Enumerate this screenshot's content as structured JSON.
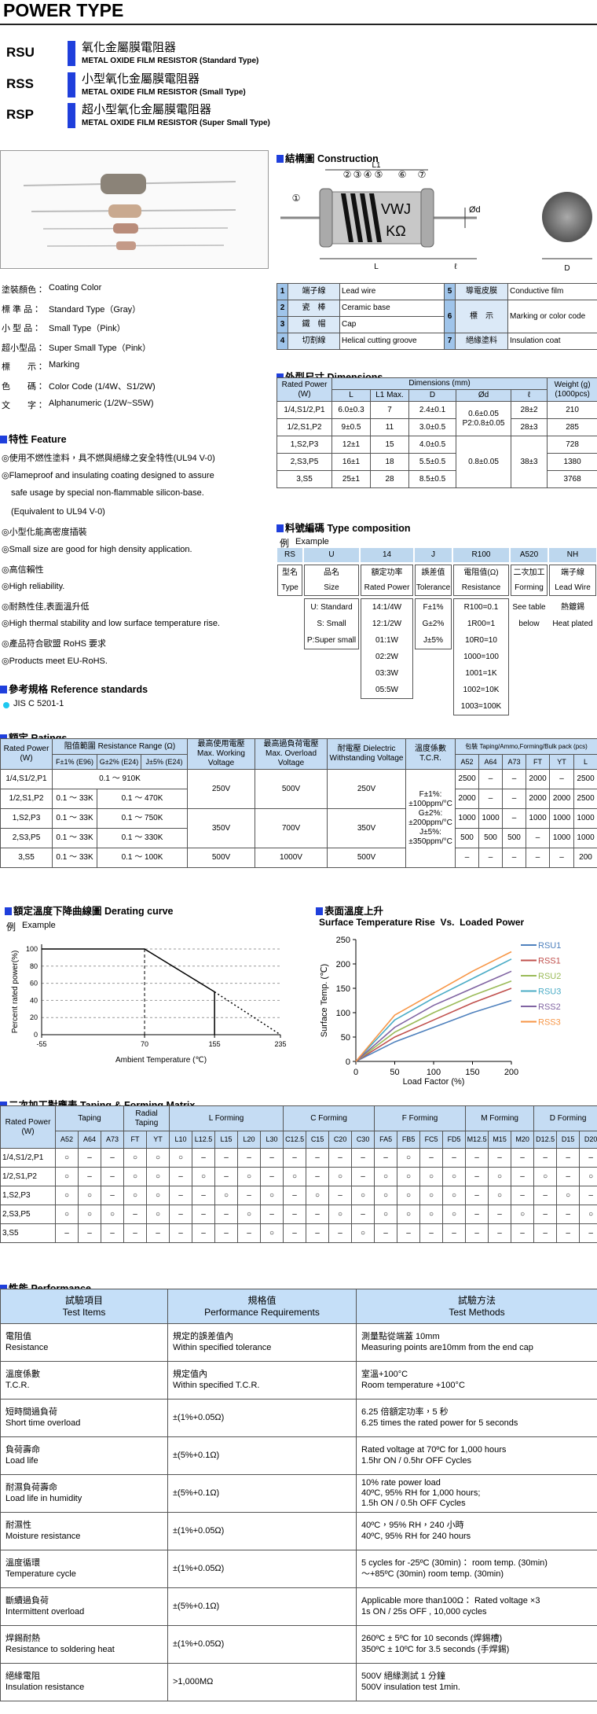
{
  "header": {
    "title": "POWER TYPE"
  },
  "series_types": [
    {
      "code": "RSU",
      "name_zh": "氧化金屬膜電阻器",
      "name_en": "METAL OXIDE FILM RESISTOR (Standard Type)"
    },
    {
      "code": "RSS",
      "name_zh": "小型氧化金屬膜電阻器",
      "name_en": "METAL OXIDE FILM RESISTOR (Small Type)"
    },
    {
      "code": "RSP",
      "name_zh": "超小型氧化金屬膜電阻器",
      "name_en": "METAL OXIDE FILM RESISTOR (Super Small Type)"
    }
  ],
  "coating": [
    {
      "zh": "塗裝顏色：",
      "en": "Coating Color"
    },
    {
      "zh": "標 準 品：",
      "en": "Standard Type（Gray）"
    },
    {
      "zh": "小 型 品：",
      "en": "Small Type（Pink）"
    },
    {
      "zh": "超小型品：",
      "en": "Super Small Type（Pink）"
    },
    {
      "zh": "標　　示：",
      "en": "Marking"
    },
    {
      "zh": "色　　碼：",
      "en": "Color Code (1/4W、S1/2W)"
    },
    {
      "zh": "文　　字：",
      "en": "Alphanumeric (1/2W~S5W)"
    }
  ],
  "feature": {
    "title": "特性 Feature",
    "items": [
      "◎使用不燃性塗料，具不燃與絕緣之安全特性(UL94 V-0)",
      "◎Flameproof and insulating coating designed to assure",
      "safe usage by special non-flammable silicon-base.",
      "(Equivalent to UL94 V-0)",
      "◎小型化能高密度插裝",
      "◎Small size are good for high density application.",
      "◎高信賴性",
      "◎High reliability.",
      "◎耐熱性佳,表面溫升低",
      "◎High thermal stability and low surface temperature rise.",
      "◎產品符合歐盟 RoHS 要求",
      "◎Products meet  EU-RoHS."
    ]
  },
  "reference": {
    "title": "參考規格 Reference standards",
    "items": [
      "JIS C 5201-1"
    ]
  },
  "construction": {
    "title": "結構圖 Construction",
    "drawing": {
      "markers": [
        "①",
        "②",
        "③",
        "④",
        "⑤",
        "⑥",
        "⑦"
      ],
      "L1": "L1",
      "d": "Ød",
      "L": "L",
      "l": "ℓ",
      "D": "D",
      "marking": [
        "VWJ",
        "KΩ"
      ]
    },
    "parts": [
      {
        "no": "1",
        "zh": "端子線",
        "en": "Lead wire"
      },
      {
        "no": "2",
        "zh": "瓷　棒",
        "en": "Ceramic base"
      },
      {
        "no": "3",
        "zh": "鐵　帽",
        "en": "Cap"
      },
      {
        "no": "4",
        "zh": "切割線",
        "en": "Helical cutting  groove"
      },
      {
        "no": "5",
        "zh": "導電皮膜",
        "en": "Conductive film"
      },
      {
        "no": "6",
        "zh": "標　示",
        "en": "Marking or color code"
      },
      {
        "no": "7",
        "zh": "絕緣塗料",
        "en": "Insulation coat"
      }
    ]
  },
  "dimensions": {
    "title": "外型尺寸 Dimensions",
    "header": {
      "rated": "Rated Power (W)",
      "dims": "Dimensions (mm)",
      "L": "L",
      "L1": "L1 Max.",
      "D": "D",
      "d": "Ød",
      "l": "ℓ",
      "weight": "Weight (g) (1000pcs)"
    },
    "rows": [
      [
        "1/4,S1/2,P1",
        "6.0±0.3",
        "7",
        "2.4±0.1",
        "210"
      ],
      [
        "1/2,S1,P2",
        "9±0.5",
        "11",
        "3.0±0.5",
        "285"
      ],
      [
        "1,S2,P3",
        "12±1",
        "15",
        "4.0±0.5",
        "728"
      ],
      [
        "2,S3,P5",
        "16±1",
        "18",
        "5.5±0.5",
        "1380"
      ],
      [
        "3,S5",
        "25±1",
        "28",
        "8.5±0.5",
        "3768"
      ]
    ],
    "d_values": [
      [
        "0.6±0.05",
        "P2:0.8±0.05"
      ],
      [
        "0.8±0.05"
      ]
    ],
    "l_values": [
      "28±2",
      "28±3",
      "38±3"
    ]
  },
  "type_composition": {
    "title": "料號編碼 Type composition",
    "example_label": "例",
    "example": "Example",
    "codes": [
      "RS",
      "U",
      "14",
      "J",
      "R100",
      "A520",
      "NH"
    ],
    "headers": [
      [
        "型名",
        "Type"
      ],
      [
        "品名",
        "Size"
      ],
      [
        "額定功率",
        "Rated Power"
      ],
      [
        "誤差值",
        "Tolerance"
      ],
      [
        "電阻值(Ω)",
        "Resistance"
      ],
      [
        "二次加工",
        "Forming"
      ],
      [
        "端子線",
        "Lead Wire"
      ]
    ],
    "size": [
      "U: Standard",
      "S: Small",
      "P:Super small"
    ],
    "power": [
      "14:1/4W",
      "12:1/2W",
      "01:1W",
      "02:2W",
      "03:3W",
      "05:5W"
    ],
    "tolerance": [
      "F±1%",
      "G±2%",
      "J±5%"
    ],
    "resistance": [
      "R100=0.1",
      "1R00=1",
      "10R0=10",
      "1000=100",
      "1001=1K",
      "1002=10K",
      "1003=100K"
    ],
    "forming": [
      "See table",
      "below"
    ],
    "lead": [
      "熱鍍錫",
      "Heat plated"
    ]
  },
  "ratings": {
    "title": "額定 Ratings",
    "headers": {
      "rated": "Rated Power (W)",
      "range": "阻值範圍 Resistance Range (Ω)",
      "f1": "F±1% (E96)",
      "g2": "G±2% (E24)",
      "j5": "J±5% (E24)",
      "working": "最高使用電壓 Max. Working Voltage",
      "overload": "最高過負荷電壓 Max. Overload Voltage",
      "dielectric": "耐電壓 Dielectric Withstanding Voltage",
      "tcr": "溫度係數 T.C.R.",
      "pack": "包裝 Taping/Ammo,Forming/Bulk pack (pcs)",
      "pack_cols": [
        "A52",
        "A64",
        "A73",
        "FT",
        "YT",
        "L"
      ]
    },
    "power": [
      "1/4,S1/2,P1",
      "1/2,S1,P2",
      "1,S2,P3",
      "2,S3,P5",
      "3,S5"
    ],
    "range": [
      [
        "0.1 ～ 910K"
      ],
      [
        "0.1 ～ 33K",
        "0.1 ～ 470K"
      ],
      [
        "0.1 ～ 33K",
        "0.1 ～ 750K"
      ],
      [
        "0.1 ～ 33K",
        "0.1 ～ 330K"
      ],
      [
        "0.1 ～ 33K",
        "0.1 ～ 100K"
      ]
    ],
    "working": [
      "250V",
      "350V",
      "500V"
    ],
    "overload": [
      "500V",
      "700V",
      "1000V"
    ],
    "dielectric": [
      "250V",
      "350V",
      "500V"
    ],
    "tcr": [
      "F±1%:",
      "±100ppm/°C",
      "G±2%:",
      "±200ppm/°C",
      "J±5%:",
      "±350ppm/°C"
    ],
    "packing": [
      [
        2500,
        "–",
        "–",
        2000,
        "–",
        2500
      ],
      [
        2000,
        "–",
        "–",
        2000,
        2000,
        2500
      ],
      [
        1000,
        1000,
        "–",
        1000,
        1000,
        1000
      ],
      [
        500,
        500,
        500,
        "–",
        1000,
        1000
      ],
      [
        "–",
        "–",
        "–",
        "–",
        "–",
        200
      ]
    ]
  },
  "derating": {
    "title": "額定溫度下降曲線圖 Derating curve",
    "example_label": "例",
    "example": "Example",
    "ylabel": "Percent rated power(%)",
    "xlabel": "Ambient Temperature (℃)",
    "xlim": [
      -55,
      235
    ],
    "ylim": [
      0,
      100
    ],
    "xticks": [
      -55,
      70,
      155,
      235
    ],
    "yticks": [
      0,
      20,
      40,
      60,
      80,
      100
    ],
    "solid": {
      "x": [
        -55,
        70,
        155,
        155
      ],
      "y": [
        100,
        100,
        50,
        0
      ]
    },
    "dotted": {
      "x": [
        155,
        235
      ],
      "y": [
        50,
        0
      ]
    }
  },
  "surface": {
    "title": "表面溫度上升",
    "subtitle": "Surface Temperature Rise  Vs.  Loaded Power",
    "ylabel": "Surface Temp. (℃)",
    "xlabel": "Load Factor (%)",
    "x": [
      0,
      50,
      100,
      150,
      200
    ],
    "xlim": [
      0,
      200
    ],
    "ylim": [
      0,
      250
    ],
    "xticks": [
      0,
      50,
      100,
      150,
      200
    ],
    "yticks": [
      0,
      50,
      100,
      150,
      200,
      250
    ],
    "series": [
      {
        "name": "RSU1",
        "color": "#4f81bd",
        "values": [
          0,
          40,
          70,
          100,
          125
        ]
      },
      {
        "name": "RSS1",
        "color": "#c0504d",
        "values": [
          0,
          50,
          85,
          120,
          150
        ]
      },
      {
        "name": "RSU2",
        "color": "#9bbb59",
        "values": [
          0,
          60,
          100,
          135,
          165
        ]
      },
      {
        "name": "RSU3",
        "color": "#4bacc6",
        "values": [
          0,
          85,
          130,
          170,
          210
        ]
      },
      {
        "name": "RSS2",
        "color": "#8064a2",
        "values": [
          0,
          70,
          115,
          150,
          185
        ]
      },
      {
        "name": "RSS3",
        "color": "#f79646",
        "values": [
          0,
          95,
          140,
          185,
          225
        ]
      }
    ]
  },
  "taping": {
    "title": "二次加工對應表 Taping & Forming Matrix",
    "rated": "Rated Power (W)",
    "groups": [
      {
        "name": "Taping",
        "cols": [
          "A52",
          "A64",
          "A73"
        ]
      },
      {
        "name": "Radial Taping",
        "cols": [
          "FT",
          "YT"
        ]
      },
      {
        "name": "L  Forming",
        "cols": [
          "L10",
          "L12.5",
          "L15",
          "L20",
          "L30"
        ]
      },
      {
        "name": "C  Forming",
        "cols": [
          "C12.5",
          "C15",
          "C20",
          "C30"
        ]
      },
      {
        "name": "F  Forming",
        "cols": [
          "FA5",
          "FB5",
          "FC5",
          "FD5"
        ]
      },
      {
        "name": "M  Forming",
        "cols": [
          "M12.5",
          "M15",
          "M20"
        ]
      },
      {
        "name": "D  Forming",
        "cols": [
          "D12.5",
          "D15",
          "D20"
        ]
      }
    ],
    "rows": [
      {
        "power": "1/4,S1/2,P1",
        "marks": [
          "○",
          "–",
          "–",
          "○",
          "○",
          "○",
          "–",
          "–",
          "–",
          "–",
          "–",
          "–",
          "–",
          "–",
          "–",
          "○",
          "–",
          "–",
          "–",
          "–",
          "–",
          "–",
          "–",
          "–"
        ]
      },
      {
        "power": "1/2,S1,P2",
        "marks": [
          "○",
          "–",
          "–",
          "○",
          "○",
          "–",
          "○",
          "–",
          "○",
          "–",
          "○",
          "–",
          "○",
          "–",
          "○",
          "○",
          "○",
          "○",
          "–",
          "○",
          "–",
          "○",
          "–",
          "○"
        ]
      },
      {
        "power": "1,S2,P3",
        "marks": [
          "○",
          "○",
          "–",
          "○",
          "○",
          "–",
          "–",
          "○",
          "–",
          "○",
          "–",
          "○",
          "–",
          "○",
          "○",
          "○",
          "○",
          "○",
          "–",
          "○",
          "–",
          "–",
          "○",
          "–"
        ]
      },
      {
        "power": "2,S3,P5",
        "marks": [
          "○",
          "○",
          "○",
          "–",
          "○",
          "–",
          "–",
          "–",
          "○",
          "–",
          "–",
          "–",
          "○",
          "–",
          "○",
          "○",
          "○",
          "○",
          "–",
          "–",
          "○",
          "–",
          "–",
          "○"
        ]
      },
      {
        "power": "3,S5",
        "marks": [
          "–",
          "–",
          "–",
          "–",
          "–",
          "–",
          "–",
          "–",
          "–",
          "○",
          "–",
          "–",
          "–",
          "○",
          "–",
          "–",
          "–",
          "–",
          "–",
          "–",
          "–",
          "–",
          "–",
          "–"
        ]
      }
    ]
  },
  "performance": {
    "title": "性能 Performance",
    "headers": [
      [
        "試驗項目",
        "Test Items"
      ],
      [
        "規格值",
        "Performance Requirements"
      ],
      [
        "試驗方法",
        "Test Methods"
      ]
    ],
    "rows": [
      [
        [
          "電阻值",
          "Resistance"
        ],
        [
          "規定的誤差值內",
          "Within specified tolerance"
        ],
        [
          "測量點從端蓋 10mm",
          "Measuring points are10mm from the end cap"
        ]
      ],
      [
        [
          "溫度係數",
          "T.C.R."
        ],
        [
          "規定值內",
          "Within specified T.C.R."
        ],
        [
          "室溫+100°C",
          "Room temperature +100°C"
        ]
      ],
      [
        [
          "短時間過負荷",
          "Short time overload"
        ],
        [
          "±(1%+0.05Ω)"
        ],
        [
          "6.25 倍額定功率，5 秒",
          "6.25 times the rated power for 5 seconds"
        ]
      ],
      [
        [
          "負荷壽命",
          "Load life"
        ],
        [
          "±(5%+0.1Ω)"
        ],
        [
          "Rated voltage at 70ºC for 1,000 hours",
          "1.5hr ON / 0.5hr OFF Cycles"
        ]
      ],
      [
        [
          "耐濕負荷壽命",
          "Load life in humidity"
        ],
        [
          "±(5%+0.1Ω)"
        ],
        [
          "10% rate power load",
          "40ºC, 95% RH for 1,000 hours;",
          "1.5h ON / 0.5h OFF Cycles"
        ]
      ],
      [
        [
          "耐濕性",
          "Moisture resistance"
        ],
        [
          "±(1%+0.05Ω)"
        ],
        [
          "40ºC，95% RH，240 小時",
          "40ºC, 95% RH for 240 hours"
        ]
      ],
      [
        [
          "溫度循環",
          "Temperature cycle"
        ],
        [
          "±(1%+0.05Ω)"
        ],
        [
          "5 cycles for -25ºC (30min)： room temp. (30min)",
          "～+85ºC (30min) room temp. (30min)"
        ]
      ],
      [
        [
          "斷續過負荷",
          "Intermittent overload"
        ],
        [
          "±(5%+0.1Ω)"
        ],
        [
          "Applicable more than100Ω： Rated voltage ×3",
          "1s ON / 25s OFF , 10,000 cycles"
        ]
      ],
      [
        [
          "焊錫耐熱",
          "Resistance to soldering heat"
        ],
        [
          "±(1%+0.05Ω)"
        ],
        [
          "260ºC ± 5ºC for 10 seconds (焊錫槽)",
          "350ºC ± 10ºC for 3.5 seconds (手焊錫)"
        ]
      ],
      [
        [
          "絕緣電阻",
          "Insulation resistance"
        ],
        [
          ">1,000MΩ"
        ],
        [
          "500V 絕緣測試 1 分鐘",
          "500V insulation test 1min."
        ]
      ]
    ]
  }
}
